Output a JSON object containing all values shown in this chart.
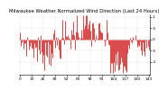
{
  "title": "Milwaukee Weather Normalized Wind Direction (Last 24 Hours)",
  "background_color": "#ffffff",
  "plot_bg_color": "#ffffff",
  "line_color": "#cc0000",
  "grid_color": "#bbbbbb",
  "title_fontsize": 3.8,
  "tick_fontsize": 3.2,
  "ylim": [
    -1.55,
    1.1
  ],
  "yticks": [
    1.0,
    0.5,
    0.0,
    -0.5,
    -1.0
  ],
  "ytick_labels": [
    "1",
    ".5",
    "0",
    ".5",
    "-1"
  ],
  "num_points": 144,
  "seed": 7
}
